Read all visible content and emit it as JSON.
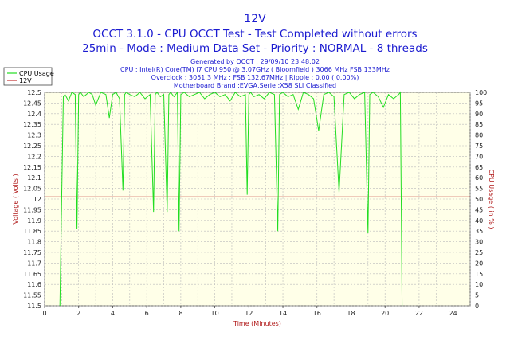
{
  "chart_data": {
    "type": "line",
    "title": "12V",
    "subtitle_lines": [
      "OCCT 3.1.0 - CPU OCCT Test - Test Completed without errors",
      "25min - Mode : Medium Data Set - Priority : NORMAL - 8 threads"
    ],
    "info_lines": [
      "Generated by OCCT : 29/09/10 23:48:02",
      "CPU : Intel(R) Core(TM) i7 CPU 950 @ 3.07GHz ( Bloomfield ) 3066 MHz FSB 133MHz",
      "Overclock : 3051.3 MHz ; FSB 132.67MHz | Ripple : 0.00 ( 0.00%)",
      "Motherboard Brand :EVGA,Serie :X58 SLI Classified"
    ],
    "xlabel": "Time (Minutes)",
    "ylabel_left": "Voltage ( Volts )",
    "ylabel_right": "CPU Usage ( in % )",
    "xlim": [
      0,
      25
    ],
    "ylim_left": [
      11.5,
      12.5
    ],
    "ylim_right": [
      0,
      100
    ],
    "x_ticks": [
      "0",
      "2",
      "4",
      "6",
      "8",
      "10",
      "12",
      "14",
      "16",
      "18",
      "20",
      "22",
      "24"
    ],
    "y_ticks_left": [
      "12.5",
      "12.45",
      "12.4",
      "12.35",
      "12.3",
      "12.25",
      "12.2",
      "12.15",
      "12.1",
      "12.05",
      "12",
      "11.95",
      "11.9",
      "11.85",
      "11.8",
      "11.75",
      "11.7",
      "11.65",
      "11.6",
      "11.55",
      "11.5"
    ],
    "y_ticks_right": [
      "100",
      "95",
      "90",
      "85",
      "80",
      "75",
      "70",
      "65",
      "60",
      "55",
      "50",
      "45",
      "40",
      "35",
      "30",
      "25",
      "20",
      "15",
      "10",
      "5",
      "0"
    ],
    "grid": true,
    "legend_position": "top-left",
    "series": [
      {
        "name": "CPU Usage",
        "axis": "right",
        "color": "#22dd22",
        "x": [
          0.9,
          1.1,
          1.2,
          1.4,
          1.6,
          1.8,
          1.9,
          2.0,
          2.1,
          2.3,
          2.6,
          2.8,
          3.0,
          3.3,
          3.6,
          3.8,
          4.0,
          4.2,
          4.4,
          4.6,
          4.7,
          4.8,
          5.0,
          5.3,
          5.6,
          5.9,
          6.2,
          6.4,
          6.5,
          6.6,
          6.8,
          7.0,
          7.2,
          7.3,
          7.4,
          7.6,
          7.8,
          7.9,
          8.0,
          8.2,
          8.5,
          8.8,
          9.1,
          9.4,
          9.7,
          10.0,
          10.3,
          10.6,
          10.9,
          11.2,
          11.5,
          11.8,
          11.9,
          12.0,
          12.1,
          12.3,
          12.6,
          12.9,
          13.2,
          13.5,
          13.7,
          13.8,
          14.0,
          14.3,
          14.6,
          14.9,
          15.2,
          15.5,
          15.8,
          16.1,
          16.4,
          16.7,
          17.0,
          17.3,
          17.6,
          17.9,
          18.2,
          18.5,
          18.8,
          19.0,
          19.1,
          19.3,
          19.6,
          19.9,
          20.2,
          20.5,
          20.8,
          20.9,
          21.0
        ],
        "y": [
          0,
          98,
          99,
          96,
          100,
          99,
          36,
          99,
          100,
          98,
          100,
          99,
          94,
          100,
          99,
          88,
          99,
          100,
          97,
          54,
          99,
          100,
          99,
          98,
          100,
          97,
          99,
          44,
          99,
          100,
          98,
          99,
          44,
          99,
          100,
          98,
          100,
          35,
          99,
          100,
          98,
          99,
          100,
          97,
          99,
          100,
          98,
          99,
          96,
          100,
          98,
          99,
          52,
          99,
          100,
          98,
          99,
          97,
          100,
          99,
          35,
          99,
          100,
          98,
          99,
          92,
          100,
          99,
          97,
          82,
          99,
          100,
          98,
          53,
          99,
          100,
          97,
          99,
          100,
          34,
          99,
          100,
          98,
          93,
          99,
          97,
          99,
          100,
          0
        ]
      },
      {
        "name": "12V",
        "axis": "left",
        "color": "#c03030",
        "x": [
          0,
          25
        ],
        "y": [
          12.01,
          12.01
        ]
      }
    ]
  }
}
